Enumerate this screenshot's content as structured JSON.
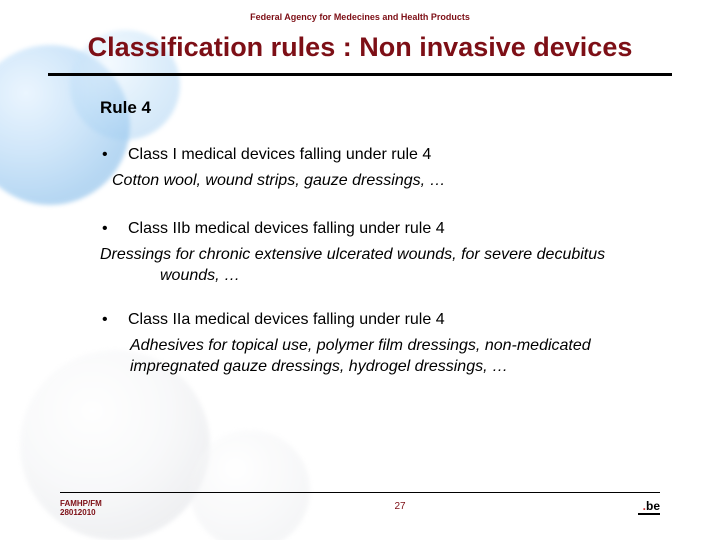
{
  "colors": {
    "accent": "#7d0f16",
    "rule": "#000000",
    "background": "#ffffff",
    "pill_blue": "#8cc0ec",
    "pill_white": "#e2e4e8"
  },
  "typography": {
    "title_fontsize": 27,
    "body_fontsize": 16,
    "agency_fontsize": 9,
    "footer_fontsize": 8,
    "font_family": "Trebuchet MS"
  },
  "header": {
    "agency": "Federal Agency for Medecines and Health Products",
    "title": "Classification rules : Non invasive devices"
  },
  "body": {
    "rule_heading": "Rule 4",
    "sections": [
      {
        "bullet": "•",
        "heading": "Class I medical devices falling under rule 4",
        "example": "Cotton wool, wound strips, gauze dressings, …"
      },
      {
        "bullet": "•",
        "heading": "Class IIb medical devices falling under rule 4",
        "example": "Dressings for chronic extensive ulcerated wounds, for severe decubitus wounds, …"
      },
      {
        "bullet": "•",
        "heading": "Class IIa medical devices falling under rule 4",
        "example": "Adhesives for topical use, polymer film dressings, non-medicated impregnated gauze dressings, hydrogel dressings, …"
      }
    ]
  },
  "footer": {
    "left_line1": "FAMHP/FM",
    "left_line2": "28012010",
    "page_number": "27",
    "logo_dot": ".",
    "logo_text": "be"
  }
}
